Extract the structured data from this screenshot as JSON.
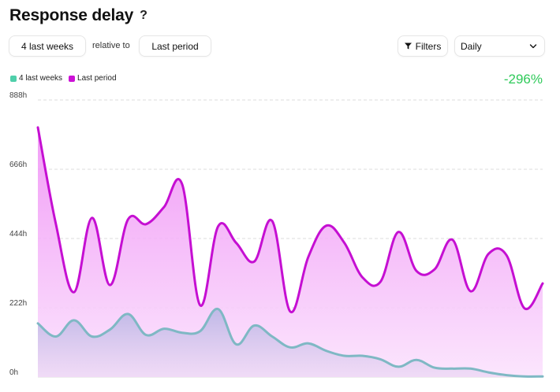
{
  "header": {
    "title": "Response delay",
    "help": "?"
  },
  "controls": {
    "range": "4 last weeks",
    "relative_label": "relative to",
    "compare": "Last period",
    "filters": "Filters",
    "granularity": "Daily"
  },
  "legend": [
    {
      "label": "4 last weeks",
      "color": "#4fcfaa"
    },
    {
      "label": "Last period",
      "color": "#cc11d6"
    }
  ],
  "change": "-296%",
  "colors": {
    "current": "#7fb8c4",
    "previous": "#c50fd2",
    "positive": "#2fca5a"
  },
  "chart_data": {
    "type": "area",
    "ylim": [
      0,
      888
    ],
    "y_ticks": [
      "0h",
      "222h",
      "444h",
      "666h",
      "888h"
    ],
    "y_tick_values": [
      0,
      222,
      444,
      666,
      888
    ],
    "series": [
      {
        "name": "Last period",
        "values": [
          800,
          490,
          272,
          510,
          295,
          505,
          490,
          545,
          618,
          230,
          483,
          430,
          370,
          500,
          210,
          385,
          485,
          430,
          320,
          305,
          465,
          340,
          345,
          440,
          275,
          395,
          390,
          220,
          300
        ]
      },
      {
        "name": "4 last weeks",
        "values": [
          172,
          130,
          182,
          130,
          152,
          202,
          135,
          155,
          142,
          147,
          218,
          105,
          165,
          130,
          95,
          108,
          84,
          68,
          68,
          57,
          33,
          55,
          30,
          27,
          27,
          15,
          6,
          2,
          2
        ]
      }
    ]
  }
}
